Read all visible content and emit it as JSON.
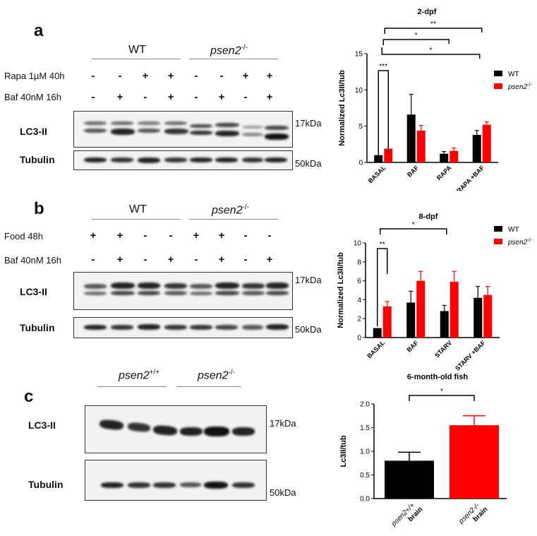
{
  "panels": [
    {
      "letter": "a",
      "groups": [
        "WT",
        "psen2",
        "-/-"
      ],
      "treatments": [
        {
          "label": "Rapa 1µM 40h",
          "symbols": [
            "-",
            "-",
            "+",
            "+",
            "-",
            "-",
            "+",
            "+"
          ]
        },
        {
          "label": "Baf 40nM 16h",
          "symbols": [
            "-",
            "+",
            "-",
            "+",
            "-",
            "+",
            "-",
            "+"
          ]
        }
      ],
      "blots": [
        {
          "label": "LC3-II",
          "kda": "17kDa"
        },
        {
          "label": "Tubulin",
          "kda": "50kDa"
        }
      ]
    },
    {
      "letter": "b",
      "groups": [
        "WT",
        "psen2",
        "-/-"
      ],
      "treatments": [
        {
          "label": "Food 48h",
          "symbols": [
            "+",
            "+",
            "-",
            "-",
            "+",
            "+",
            "-",
            "-"
          ]
        },
        {
          "label": "Baf 40nM 16h",
          "symbols": [
            "-",
            "+",
            "-",
            "+",
            "-",
            "+",
            "-",
            "+"
          ]
        }
      ],
      "blots": [
        {
          "label": "LC3-II",
          "kda": "17kDa"
        },
        {
          "label": "Tubulin",
          "kda": "50kDa"
        }
      ]
    },
    {
      "letter": "c",
      "groups": [
        "psen2",
        "+/+",
        "psen2",
        "-/-"
      ],
      "blots": [
        {
          "label": "LC3-II",
          "kda": "17kDa"
        },
        {
          "label": "Tubulin",
          "kda": "50kDa"
        }
      ]
    }
  ],
  "chart_data": [
    {
      "type": "bar",
      "title": "2-dpf",
      "ylabel": "Normalized Lc3II/tub",
      "ylim": [
        0,
        15
      ],
      "yticks": [
        0,
        5,
        10,
        15
      ],
      "categories": [
        "BASAL",
        "BAF",
        "RAPA",
        "RAPA +BAF"
      ],
      "series": [
        {
          "name": "WT",
          "color": "#000000",
          "values": [
            1.0,
            6.6,
            1.2,
            3.8
          ],
          "errors": [
            0,
            2.8,
            0.3,
            0.6
          ]
        },
        {
          "name": "psen2 -/-",
          "color": "#ff0000",
          "values": [
            1.9,
            4.4,
            1.6,
            5.2
          ],
          "errors": [
            0,
            0.7,
            0.4,
            0.4
          ]
        }
      ],
      "significance": [
        {
          "label": "***",
          "from": "BASAL WT",
          "to": "BASAL psen2 -/-"
        },
        {
          "label": "*",
          "from": "BASAL",
          "to": "RAPA"
        },
        {
          "label": "*",
          "from": "BASAL",
          "to": "RAPA +BAF"
        },
        {
          "label": "**",
          "from": "BASAL",
          "to": "RAPA +BAF"
        }
      ],
      "legend": "top-right"
    },
    {
      "type": "bar",
      "title": "8-dpf",
      "ylabel": "Normalized Lc3II/tub",
      "ylim": [
        0,
        10
      ],
      "yticks": [
        0,
        2,
        4,
        6,
        8,
        10
      ],
      "categories": [
        "BASAL",
        "BAF",
        "STARV",
        "STARV +BAF"
      ],
      "series": [
        {
          "name": "WT",
          "color": "#000000",
          "values": [
            1.0,
            3.7,
            2.8,
            4.2
          ],
          "errors": [
            0,
            1.2,
            0.6,
            1.2
          ]
        },
        {
          "name": "psen2 -/-",
          "color": "#ff0000",
          "values": [
            3.3,
            6.0,
            5.9,
            4.5
          ],
          "errors": [
            0.5,
            1.0,
            1.1,
            0.9
          ]
        }
      ],
      "significance": [
        {
          "label": "**",
          "from": "BASAL WT",
          "to": "BASAL psen2 -/-"
        },
        {
          "label": "*",
          "from": "BASAL",
          "to": "STARV"
        }
      ],
      "legend": "top-right"
    },
    {
      "type": "bar",
      "title": "6-month-old fish",
      "ylabel": "Lc3II/tub",
      "ylim": [
        0,
        2.0
      ],
      "yticks": [
        0.0,
        0.5,
        1.0,
        1.5,
        2.0
      ],
      "categories": [
        "psen2+/+ brain",
        "psen2-/- brain"
      ],
      "series": [
        {
          "name": "",
          "colors": [
            "#000000",
            "#ff0000"
          ],
          "values": [
            0.8,
            1.55
          ],
          "errors": [
            0.18,
            0.2
          ]
        }
      ],
      "significance": [
        {
          "label": "*",
          "from": "psen2+/+ brain",
          "to": "psen2-/- brain"
        }
      ]
    }
  ]
}
